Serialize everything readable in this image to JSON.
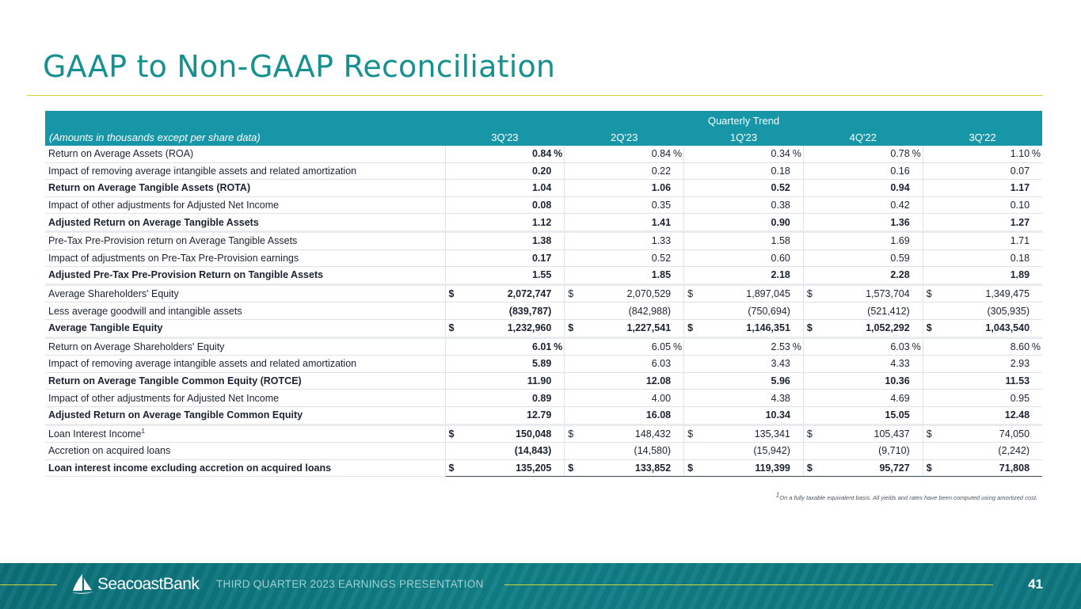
{
  "title": "GAAP to Non-GAAP Reconciliation",
  "table": {
    "group_header": "Quarterly Trend",
    "label_header": "(Amounts in thousands except per share data)",
    "columns": [
      "3Q'23",
      "2Q'23",
      "1Q'23",
      "4Q'22",
      "3Q'22"
    ],
    "rows": [
      {
        "label": "Return on Average Assets (ROA)",
        "bold": false,
        "sup": "",
        "cells": [
          {
            "sym": "",
            "val": "0.84",
            "suf": "%"
          },
          {
            "sym": "",
            "val": "0.84",
            "suf": "%"
          },
          {
            "sym": "",
            "val": "0.34",
            "suf": "%"
          },
          {
            "sym": "",
            "val": "0.78",
            "suf": "%"
          },
          {
            "sym": "",
            "val": "1.10",
            "suf": "%"
          }
        ]
      },
      {
        "label": "Impact of removing average intangible assets and related amortization",
        "bold": false,
        "sup": "",
        "cells": [
          {
            "sym": "",
            "val": "0.20",
            "suf": ""
          },
          {
            "sym": "",
            "val": "0.22",
            "suf": ""
          },
          {
            "sym": "",
            "val": "0.18",
            "suf": ""
          },
          {
            "sym": "",
            "val": "0.16",
            "suf": ""
          },
          {
            "sym": "",
            "val": "0.07",
            "suf": ""
          }
        ]
      },
      {
        "label": "Return on Average Tangible Assets (ROTA)",
        "bold": true,
        "sup": "",
        "cells": [
          {
            "sym": "",
            "val": "1.04",
            "suf": ""
          },
          {
            "sym": "",
            "val": "1.06",
            "suf": ""
          },
          {
            "sym": "",
            "val": "0.52",
            "suf": ""
          },
          {
            "sym": "",
            "val": "0.94",
            "suf": ""
          },
          {
            "sym": "",
            "val": "1.17",
            "suf": ""
          }
        ]
      },
      {
        "label": "Impact of other adjustments for Adjusted Net Income",
        "bold": false,
        "sup": "",
        "cells": [
          {
            "sym": "",
            "val": "0.08",
            "suf": ""
          },
          {
            "sym": "",
            "val": "0.35",
            "suf": ""
          },
          {
            "sym": "",
            "val": "0.38",
            "suf": ""
          },
          {
            "sym": "",
            "val": "0.42",
            "suf": ""
          },
          {
            "sym": "",
            "val": "0.10",
            "suf": ""
          }
        ]
      },
      {
        "label": "Adjusted Return on Average Tangible Assets",
        "bold": true,
        "sup": "",
        "cells": [
          {
            "sym": "",
            "val": "1.12",
            "suf": ""
          },
          {
            "sym": "",
            "val": "1.41",
            "suf": ""
          },
          {
            "sym": "",
            "val": "0.90",
            "suf": ""
          },
          {
            "sym": "",
            "val": "1.36",
            "suf": ""
          },
          {
            "sym": "",
            "val": "1.27",
            "suf": ""
          }
        ]
      },
      {
        "label": "Pre-Tax Pre-Provision return on Average Tangible Assets",
        "bold": false,
        "sup": "",
        "cells": [
          {
            "sym": "",
            "val": "1.38",
            "suf": ""
          },
          {
            "sym": "",
            "val": "1.33",
            "suf": ""
          },
          {
            "sym": "",
            "val": "1.58",
            "suf": ""
          },
          {
            "sym": "",
            "val": "1.69",
            "suf": ""
          },
          {
            "sym": "",
            "val": "1.71",
            "suf": ""
          }
        ]
      },
      {
        "label": "Impact of adjustments on Pre-Tax Pre-Provision earnings",
        "bold": false,
        "sup": "",
        "cells": [
          {
            "sym": "",
            "val": "0.17",
            "suf": ""
          },
          {
            "sym": "",
            "val": "0.52",
            "suf": ""
          },
          {
            "sym": "",
            "val": "0.60",
            "suf": ""
          },
          {
            "sym": "",
            "val": "0.59",
            "suf": ""
          },
          {
            "sym": "",
            "val": "0.18",
            "suf": ""
          }
        ]
      },
      {
        "label": "Adjusted Pre-Tax Pre-Provision Return on Tangible Assets",
        "bold": true,
        "sup": "",
        "cells": [
          {
            "sym": "",
            "val": "1.55",
            "suf": ""
          },
          {
            "sym": "",
            "val": "1.85",
            "suf": ""
          },
          {
            "sym": "",
            "val": "2.18",
            "suf": ""
          },
          {
            "sym": "",
            "val": "2.28",
            "suf": ""
          },
          {
            "sym": "",
            "val": "1.89",
            "suf": ""
          }
        ]
      },
      {
        "label": "Average Shareholders' Equity",
        "bold": false,
        "sup": "",
        "cells": [
          {
            "sym": "$",
            "val": "2,072,747",
            "suf": ""
          },
          {
            "sym": "$",
            "val": "2,070,529",
            "suf": ""
          },
          {
            "sym": "$",
            "val": "1,897,045",
            "suf": ""
          },
          {
            "sym": "$",
            "val": "1,573,704",
            "suf": ""
          },
          {
            "sym": "$",
            "val": "1,349,475",
            "suf": ""
          }
        ]
      },
      {
        "label": "Less average goodwill and intangible assets",
        "bold": false,
        "sup": "",
        "cells": [
          {
            "sym": "",
            "val": "(839,787)",
            "suf": ""
          },
          {
            "sym": "",
            "val": "(842,988)",
            "suf": ""
          },
          {
            "sym": "",
            "val": "(750,694)",
            "suf": ""
          },
          {
            "sym": "",
            "val": "(521,412)",
            "suf": ""
          },
          {
            "sym": "",
            "val": "(305,935)",
            "suf": ""
          }
        ]
      },
      {
        "label": "Average Tangible Equity",
        "bold": true,
        "sup": "",
        "cells": [
          {
            "sym": "$",
            "val": "1,232,960",
            "suf": ""
          },
          {
            "sym": "$",
            "val": "1,227,541",
            "suf": ""
          },
          {
            "sym": "$",
            "val": "1,146,351",
            "suf": ""
          },
          {
            "sym": "$",
            "val": "1,052,292",
            "suf": ""
          },
          {
            "sym": "$",
            "val": "1,043,540",
            "suf": ""
          }
        ]
      },
      {
        "label": "Return on Average Shareholders' Equity",
        "bold": false,
        "sup": "",
        "cells": [
          {
            "sym": "",
            "val": "6.01",
            "suf": "%"
          },
          {
            "sym": "",
            "val": "6.05",
            "suf": "%"
          },
          {
            "sym": "",
            "val": "2.53",
            "suf": "%"
          },
          {
            "sym": "",
            "val": "6.03",
            "suf": "%"
          },
          {
            "sym": "",
            "val": "8.60",
            "suf": "%"
          }
        ]
      },
      {
        "label": "Impact of removing average intangible assets and related amortization",
        "bold": false,
        "sup": "",
        "cells": [
          {
            "sym": "",
            "val": "5.89",
            "suf": ""
          },
          {
            "sym": "",
            "val": "6.03",
            "suf": ""
          },
          {
            "sym": "",
            "val": "3.43",
            "suf": ""
          },
          {
            "sym": "",
            "val": "4.33",
            "suf": ""
          },
          {
            "sym": "",
            "val": "2.93",
            "suf": ""
          }
        ]
      },
      {
        "label": "Return on Average Tangible Common Equity (ROTCE)",
        "bold": true,
        "sup": "",
        "cells": [
          {
            "sym": "",
            "val": "11.90",
            "suf": ""
          },
          {
            "sym": "",
            "val": "12.08",
            "suf": ""
          },
          {
            "sym": "",
            "val": "5.96",
            "suf": ""
          },
          {
            "sym": "",
            "val": "10.36",
            "suf": ""
          },
          {
            "sym": "",
            "val": "11.53",
            "suf": ""
          }
        ]
      },
      {
        "label": "Impact of other adjustments for Adjusted Net Income",
        "bold": false,
        "sup": "",
        "cells": [
          {
            "sym": "",
            "val": "0.89",
            "suf": ""
          },
          {
            "sym": "",
            "val": "4.00",
            "suf": ""
          },
          {
            "sym": "",
            "val": "4.38",
            "suf": ""
          },
          {
            "sym": "",
            "val": "4.69",
            "suf": ""
          },
          {
            "sym": "",
            "val": "0.95",
            "suf": ""
          }
        ]
      },
      {
        "label": "Adjusted Return on Average Tangible Common Equity",
        "bold": true,
        "sup": "",
        "cells": [
          {
            "sym": "",
            "val": "12.79",
            "suf": ""
          },
          {
            "sym": "",
            "val": "16.08",
            "suf": ""
          },
          {
            "sym": "",
            "val": "10.34",
            "suf": ""
          },
          {
            "sym": "",
            "val": "15.05",
            "suf": ""
          },
          {
            "sym": "",
            "val": "12.48",
            "suf": ""
          }
        ]
      },
      {
        "label": "Loan Interest Income",
        "bold": false,
        "sup": "1",
        "cells": [
          {
            "sym": "$",
            "val": "150,048",
            "suf": ""
          },
          {
            "sym": "$",
            "val": "148,432",
            "suf": ""
          },
          {
            "sym": "$",
            "val": "135,341",
            "suf": ""
          },
          {
            "sym": "$",
            "val": "105,437",
            "suf": ""
          },
          {
            "sym": "$",
            "val": "74,050",
            "suf": ""
          }
        ]
      },
      {
        "label": "Accretion on acquired loans",
        "bold": false,
        "sup": "",
        "cells": [
          {
            "sym": "",
            "val": "(14,843)",
            "suf": ""
          },
          {
            "sym": "",
            "val": "(14,580)",
            "suf": ""
          },
          {
            "sym": "",
            "val": "(15,942)",
            "suf": ""
          },
          {
            "sym": "",
            "val": "(9,710)",
            "suf": ""
          },
          {
            "sym": "",
            "val": "(2,242)",
            "suf": ""
          }
        ]
      },
      {
        "label": "Loan interest income excluding accretion on acquired loans",
        "bold": true,
        "sup": "",
        "cells": [
          {
            "sym": "$",
            "val": "135,205",
            "suf": ""
          },
          {
            "sym": "$",
            "val": "133,852",
            "suf": ""
          },
          {
            "sym": "$",
            "val": "119,399",
            "suf": ""
          },
          {
            "sym": "$",
            "val": "95,727",
            "suf": ""
          },
          {
            "sym": "$",
            "val": "71,808",
            "suf": ""
          }
        ]
      }
    ]
  },
  "footnote": {
    "sup": "1",
    "text": "On a fully taxable equivalent basis. All yields and rates have been computed using amortized cost."
  },
  "footer": {
    "logo_text": "SeacoastBank",
    "logo_icon": "sailboat-icon",
    "presentation": "THIRD QUARTER 2023 EARNINGS PRESENTATION",
    "page_number": "41"
  },
  "colors": {
    "title": "#17918f",
    "header_bg": "#1796a8",
    "accent_line": "#cfd53a",
    "footer_bg": "#0f7780"
  }
}
